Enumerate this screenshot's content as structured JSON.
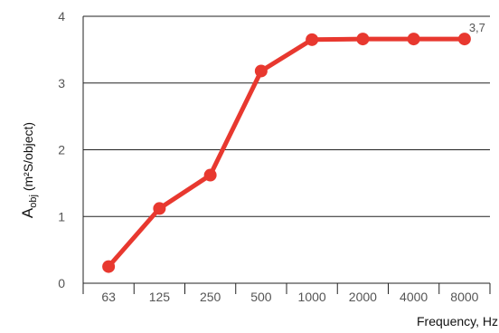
{
  "chart_data": {
    "type": "line",
    "categories": [
      "63",
      "125",
      "250",
      "500",
      "1000",
      "2000",
      "4000",
      "8000"
    ],
    "series": [
      {
        "values": [
          0.25,
          1.12,
          1.62,
          3.18,
          3.65,
          3.66,
          3.66,
          3.66
        ]
      }
    ],
    "ylim": [
      0,
      4
    ],
    "yticks": [
      "0",
      "1",
      "2",
      "3",
      "4"
    ],
    "xlabel": "Frequency, Hz",
    "ylabel_main": "A",
    "ylabel_sub": "obj",
    "ylabel_rest": " (m²S/object)",
    "data_label": "3,7",
    "grid": "horizontal",
    "colors": {
      "line": "#e8382f",
      "grid": "#222222",
      "axis": "#222222"
    }
  }
}
